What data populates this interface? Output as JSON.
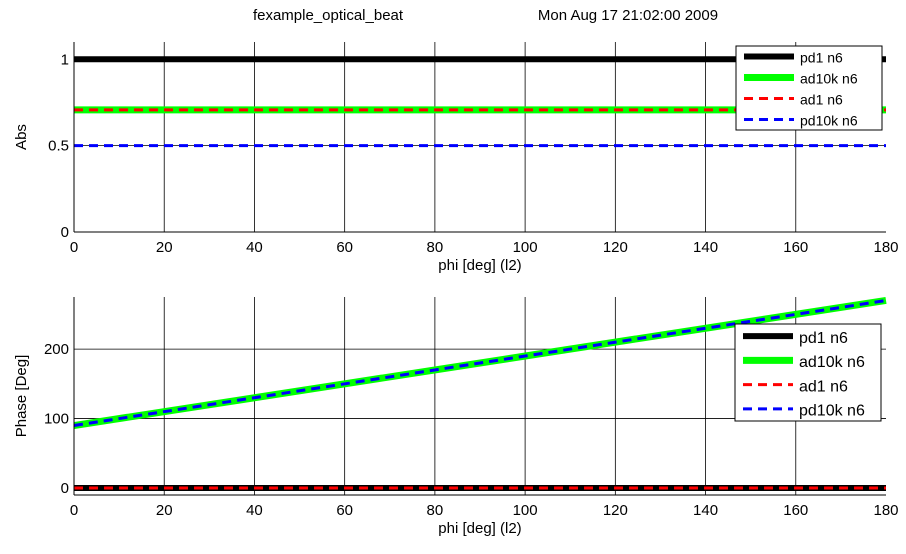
{
  "header": {
    "name": "fexample_optical_beat",
    "date": "Mon Aug 17 21:02:00 2009"
  },
  "chart_data": [
    {
      "type": "line",
      "xlabel": "phi [deg] (l2)",
      "ylabel": "Abs",
      "xlim": [
        0,
        180
      ],
      "ylim": [
        0,
        1.1
      ],
      "xticks": [
        0,
        20,
        40,
        60,
        80,
        100,
        120,
        140,
        160,
        180
      ],
      "yticks": [
        0,
        0.5,
        1
      ],
      "ytick_labels": [
        "0",
        "0.5",
        "1"
      ],
      "grid": true,
      "legend_position": "top-right",
      "x": [
        0,
        180
      ],
      "series": [
        {
          "name": "pd1 n6",
          "values": [
            1,
            1
          ],
          "color": "#000000",
          "style": "solid"
        },
        {
          "name": "ad10k n6",
          "values": [
            0.707,
            0.707
          ],
          "color": "#00ff00",
          "style": "solid"
        },
        {
          "name": "ad1 n6",
          "values": [
            0.707,
            0.707
          ],
          "color": "#ff0000",
          "style": "dashed"
        },
        {
          "name": "pd10k n6",
          "values": [
            0.5,
            0.5
          ],
          "color": "#0000ff",
          "style": "dashed"
        }
      ]
    },
    {
      "type": "line",
      "xlabel": "phi [deg] (l2)",
      "ylabel": "Phase [Deg]",
      "xlim": [
        0,
        180
      ],
      "ylim": [
        -10,
        275
      ],
      "xticks": [
        0,
        20,
        40,
        60,
        80,
        100,
        120,
        140,
        160,
        180
      ],
      "yticks": [
        0,
        100,
        200
      ],
      "ytick_labels": [
        "0",
        "100",
        "200"
      ],
      "grid": true,
      "legend_position": "top-right",
      "x": [
        0,
        180
      ],
      "series": [
        {
          "name": "pd1 n6",
          "values": [
            0,
            0
          ],
          "color": "#000000",
          "style": "solid"
        },
        {
          "name": "ad10k n6",
          "values": [
            90,
            270
          ],
          "color": "#00ff00",
          "style": "solid"
        },
        {
          "name": "ad1 n6",
          "values": [
            0,
            0
          ],
          "color": "#ff0000",
          "style": "dashed"
        },
        {
          "name": "pd10k n6",
          "values": [
            90,
            270
          ],
          "color": "#0000ff",
          "style": "dashed"
        }
      ]
    }
  ]
}
